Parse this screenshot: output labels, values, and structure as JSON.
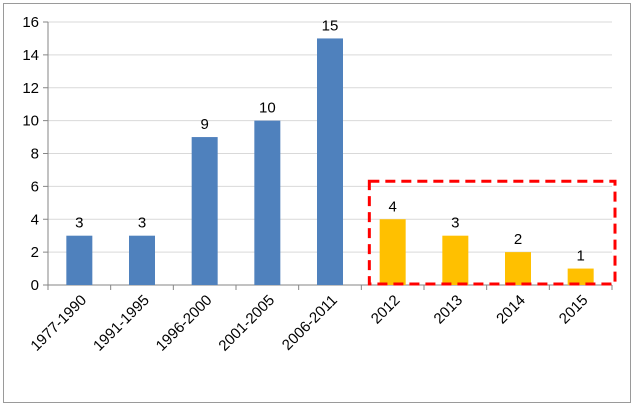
{
  "chart_data": {
    "type": "bar",
    "categories": [
      "1977-1990",
      "1991-1995",
      "1996-2000",
      "2001-2005",
      "2006-2011",
      "2012",
      "2013",
      "2014",
      "2015"
    ],
    "values": [
      3,
      3,
      9,
      10,
      15,
      4,
      3,
      2,
      1
    ],
    "value_labels": [
      "3",
      "3",
      "9",
      "10",
      "15",
      "4",
      "3",
      "2",
      "1"
    ],
    "bar_colors": [
      "#4f81bd",
      "#4f81bd",
      "#4f81bd",
      "#4f81bd",
      "#4f81bd",
      "#ffc000",
      "#ffc000",
      "#ffc000",
      "#ffc000"
    ],
    "ylim": [
      0,
      16
    ],
    "yticks": [
      0,
      2,
      4,
      6,
      8,
      10,
      12,
      14,
      16
    ],
    "ytick_labels": [
      "0",
      "2",
      "4",
      "6",
      "8",
      "10",
      "12",
      "14",
      "16"
    ],
    "grid": true,
    "legend": "none",
    "title": "",
    "xlabel": "",
    "ylabel": "",
    "highlight": {
      "categories": [
        "2012",
        "2013",
        "2014",
        "2015"
      ],
      "style": "dashed",
      "color": "#ff0000"
    },
    "colors": {
      "grid": "#d9d9d9",
      "axis": "#868686",
      "text": "#000000"
    }
  }
}
